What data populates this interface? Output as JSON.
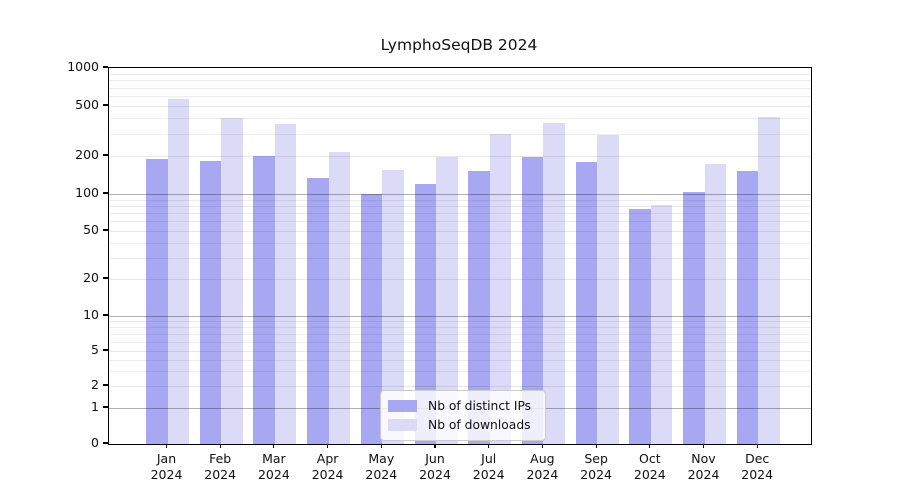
{
  "title": "LymphoSeqDB 2024",
  "chart_data": {
    "type": "bar",
    "categories": [
      "Jan 2024",
      "Feb 2024",
      "Mar 2024",
      "Apr 2024",
      "May 2024",
      "Jun 2024",
      "Jul 2024",
      "Aug 2024",
      "Sep 2024",
      "Oct 2024",
      "Nov 2024",
      "Dec 2024"
    ],
    "series": [
      {
        "name": "Nb of distinct IPs",
        "color": "#a8a8f2",
        "values": [
          190,
          183,
          200,
          134,
          100,
          120,
          152,
          195,
          180,
          75,
          103,
          152
        ]
      },
      {
        "name": "Nb of downloads",
        "color": "#dbdbf8",
        "values": [
          570,
          400,
          360,
          215,
          155,
          198,
          297,
          365,
          295,
          81,
          172,
          410
        ]
      }
    ],
    "title": "LymphoSeqDB 2024",
    "xlabel": "",
    "ylabel": "",
    "yscale": "symlog",
    "ylim": [
      0,
      1000
    ],
    "yticks": [
      0,
      1,
      2,
      5,
      10,
      20,
      50,
      100,
      200,
      500,
      1000
    ],
    "grid": true,
    "legend_position": "lower center"
  },
  "legend": {
    "items": [
      {
        "label": "Nb of distinct IPs"
      },
      {
        "label": "Nb of downloads"
      }
    ]
  }
}
